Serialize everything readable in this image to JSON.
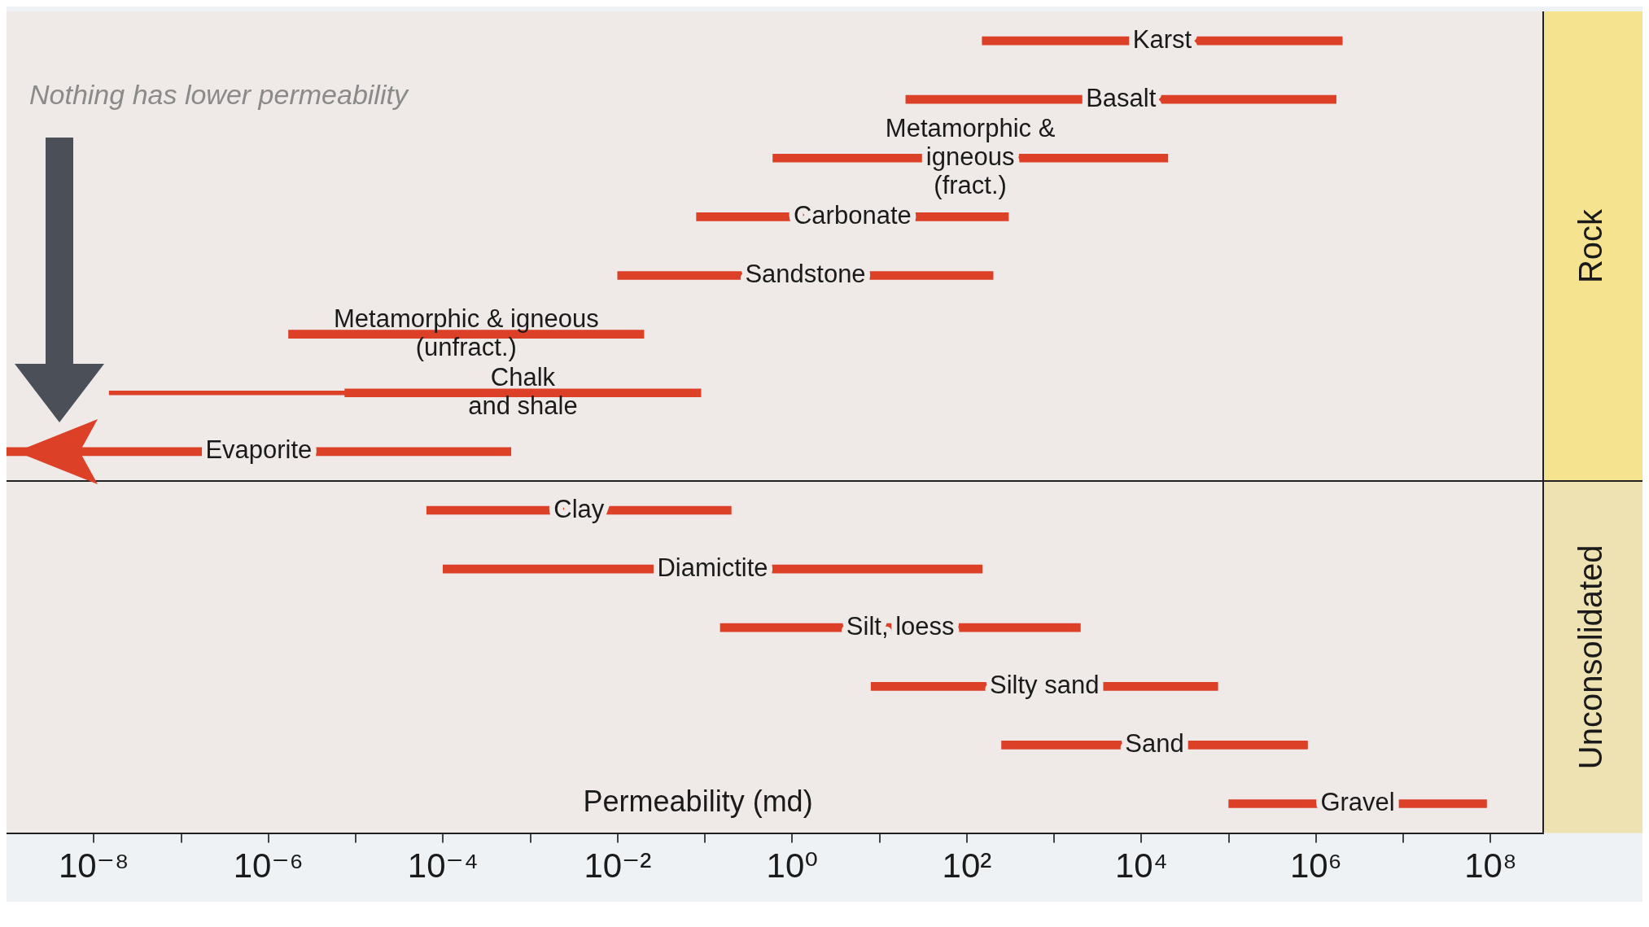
{
  "chart_data": {
    "type": "bar",
    "orientation": "horizontal",
    "log": "x",
    "xlabel": "Permeability (md)",
    "categories": [
      "Karst",
      "Basalt",
      "Metamorphic &\nigneous\n(fract.)",
      "Carbonate",
      "Sandstone",
      "Metamorphic & igneous\n(unfract.)",
      "Chalk\nand shale",
      "Evaporite",
      "Clay",
      "Diamictite",
      "Silt, loess",
      "Silty sand",
      "Sand",
      "Gravel"
    ],
    "series": [
      {
        "color": "#dc4128",
        "base": [
          150,
          20,
          0.6,
          0.08,
          0.01,
          1.7e-06,
          7.5e-06,
          1e-09,
          6.5e-05,
          0.0001,
          0.15,
          8,
          250,
          100000.0
        ],
        "values": [
          1999850,
          1699980,
          19999.4,
          299.92,
          199.99,
          0.0199983,
          0.0899925,
          0.000599999,
          0.199935,
          149.9999,
          1999.85,
          74992,
          799750,
          89900000
        ]
      },
      {
        "color": "#dc4128",
        "line_style": "dotted",
        "base": [
          null,
          null,
          null,
          null,
          null,
          null,
          1.5e-08,
          null,
          null,
          null,
          null,
          null,
          null,
          null
        ],
        "values": [
          null,
          null,
          null,
          null,
          null,
          null,
          7.485e-06,
          null,
          null,
          null,
          null,
          null,
          null,
          null
        ]
      }
    ],
    "xlim": [
      1e-09,
      400000000.0
    ],
    "xticks": [
      {
        "value": 1e-08,
        "label": "10⁻⁸"
      },
      {
        "value": 1e-07,
        "label": null
      },
      {
        "value": 1e-06,
        "label": "10⁻⁶"
      },
      {
        "value": 1e-05,
        "label": null
      },
      {
        "value": 0.0001,
        "label": "10⁻⁴"
      },
      {
        "value": 0.001,
        "label": null
      },
      {
        "value": 0.01,
        "label": "10⁻²"
      },
      {
        "value": 0.1,
        "label": null
      },
      {
        "value": 1,
        "label": "10⁰"
      },
      {
        "value": 10,
        "label": null
      },
      {
        "value": 100,
        "label": "10²"
      },
      {
        "value": 1000,
        "label": null
      },
      {
        "value": 10000.0,
        "label": "10⁴"
      },
      {
        "value": 100000.0,
        "label": null
      },
      {
        "value": 1000000.0,
        "label": "10⁶"
      },
      {
        "value": 10000000.0,
        "label": null
      },
      {
        "value": 100000000.0,
        "label": "10⁸"
      }
    ],
    "annotations": [
      "Nothing has lower permeability",
      "Rock",
      "Unconsolidated"
    ],
    "tick_labels": "x",
    "grid": false,
    "legend": false
  }
}
